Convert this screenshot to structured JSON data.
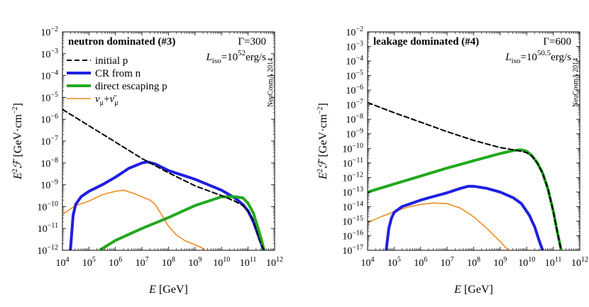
{
  "chart_data": [
    {
      "type": "line",
      "title": "neutron dominated (#3)",
      "param_gamma": "Γ=300",
      "lum_base": "L",
      "lum_sub": "iso",
      "lum_eq": "=10",
      "lum_exp": "52",
      "lum_unit": "erg/s",
      "watermark": "NeuCosmA 2014",
      "xlabel": "E [GeV]",
      "ylabel": "E²ℱ [GeV·cm⁻²]",
      "xlim": [
        4,
        12
      ],
      "ylim": [
        -12,
        -2
      ],
      "x_tick_exponents": [
        4,
        5,
        6,
        7,
        8,
        9,
        10,
        11,
        12
      ],
      "y_tick_exponents": [
        -12,
        -11,
        -10,
        -9,
        -8,
        -7,
        -6,
        -5,
        -4,
        -3,
        -2
      ],
      "series": [
        {
          "name": "initial p",
          "color": "#000000",
          "dash": true,
          "log_x": [
            4,
            5,
            6,
            7,
            8,
            9,
            10,
            10.5,
            10.8,
            11.0,
            11.15,
            11.3,
            11.45,
            11.6
          ],
          "log_y": [
            -5.55,
            -6.3,
            -7.05,
            -7.8,
            -8.45,
            -9.05,
            -9.5,
            -9.75,
            -9.95,
            -10.2,
            -10.5,
            -11.0,
            -11.6,
            -12.0
          ]
        },
        {
          "name": "CR from n",
          "color": "#1f1fe0",
          "dash": false,
          "log_x": [
            4.3,
            4.4,
            4.5,
            4.7,
            5.0,
            5.5,
            6.0,
            6.5,
            7.0,
            7.2,
            7.5,
            8.0,
            9.0,
            10.0,
            10.5,
            10.8,
            11.0,
            11.2,
            11.35,
            11.5,
            11.58
          ],
          "log_y": [
            -12.0,
            -10.4,
            -9.9,
            -9.55,
            -9.3,
            -9.0,
            -8.65,
            -8.25,
            -8.0,
            -7.95,
            -8.05,
            -8.35,
            -8.75,
            -9.25,
            -9.6,
            -9.9,
            -10.2,
            -10.7,
            -11.2,
            -11.7,
            -12.0
          ]
        },
        {
          "name": "direct escaping p",
          "color": "#22a81e",
          "dash": false,
          "log_x": [
            5.4,
            6,
            7,
            8,
            9,
            10,
            10.5,
            10.8,
            11.0,
            11.2,
            11.35,
            11.5,
            11.6
          ],
          "log_y": [
            -12.0,
            -11.55,
            -11.0,
            -10.5,
            -9.95,
            -9.55,
            -9.55,
            -9.6,
            -9.85,
            -10.3,
            -10.9,
            -11.5,
            -12.0
          ]
        },
        {
          "name": "ν_μ+ν̄_μ",
          "color": "#ef8c1f",
          "dash": false,
          "log_x": [
            4.0,
            4.5,
            5.0,
            5.5,
            6.0,
            6.3,
            6.7,
            7.0,
            7.3,
            7.5,
            7.7,
            8.0,
            8.3,
            8.6,
            8.9,
            9.2,
            9.4
          ],
          "log_y": [
            -10.35,
            -9.95,
            -9.75,
            -9.45,
            -9.3,
            -9.25,
            -9.4,
            -9.55,
            -9.7,
            -9.9,
            -10.3,
            -10.9,
            -11.3,
            -11.55,
            -11.7,
            -11.85,
            -12.0
          ]
        }
      ],
      "legend": {
        "placement": "top-left",
        "entries": [
          {
            "label": "initial p",
            "color": "#000000",
            "dash": true
          },
          {
            "label": "CR from n",
            "color": "#1f1fe0",
            "dash": false
          },
          {
            "label": "direct escaping p",
            "color": "#22a81e",
            "dash": false
          },
          {
            "label_main": "ν",
            "label_sub": "μ",
            "label_plus": "+",
            "label_main2": "ν̄",
            "label_sub2": "μ",
            "color": "#ef8c1f",
            "dash": false
          }
        ]
      }
    },
    {
      "type": "line",
      "title": "leakage dominated (#4)",
      "param_gamma": "Γ=600",
      "lum_base": "L",
      "lum_sub": "iso",
      "lum_eq": "=10",
      "lum_exp": "50.5",
      "lum_unit": "erg/s",
      "watermark": "NeuCosmA 2014",
      "xlabel": "E [GeV]",
      "ylabel": "E²ℱ [GeV·cm⁻²]",
      "xlim": [
        4,
        12
      ],
      "ylim": [
        -17,
        -2
      ],
      "x_tick_exponents": [
        4,
        5,
        6,
        7,
        8,
        9,
        10,
        11,
        12
      ],
      "y_tick_exponents": [
        -17,
        -16,
        -15,
        -14,
        -13,
        -12,
        -11,
        -10,
        -9,
        -8,
        -7,
        -6,
        -5,
        -4,
        -3,
        -2
      ],
      "series": [
        {
          "name": "initial p",
          "color": "#000000",
          "dash": true,
          "log_x": [
            4,
            5,
            6,
            7,
            8,
            9,
            9.5,
            9.8,
            10.0,
            10.2,
            10.4,
            10.6,
            10.8,
            11.0,
            11.15,
            11.3
          ],
          "log_y": [
            -6.85,
            -7.55,
            -8.2,
            -8.85,
            -9.45,
            -9.95,
            -10.1,
            -10.2,
            -10.3,
            -10.55,
            -11.0,
            -11.7,
            -12.8,
            -14.3,
            -15.7,
            -17.0
          ]
        },
        {
          "name": "CR from n",
          "color": "#1f1fe0",
          "dash": false,
          "log_x": [
            4.7,
            4.8,
            4.9,
            5.0,
            5.3,
            5.7,
            6.0,
            6.5,
            7.0,
            7.5,
            7.8,
            8.0,
            8.5,
            9.0,
            9.5,
            9.8,
            10.1,
            10.3,
            10.5,
            10.6
          ],
          "log_y": [
            -17.0,
            -15.5,
            -14.8,
            -14.4,
            -14.0,
            -13.75,
            -13.55,
            -13.3,
            -13.05,
            -12.75,
            -12.6,
            -12.6,
            -12.75,
            -13.0,
            -13.4,
            -13.8,
            -14.6,
            -15.4,
            -16.5,
            -17.0
          ]
        },
        {
          "name": "direct escaping p",
          "color": "#22a81e",
          "dash": false,
          "log_x": [
            4,
            5,
            6,
            7,
            8,
            9,
            9.5,
            9.8,
            10.0,
            10.2,
            10.4,
            10.6,
            10.8,
            11.0,
            11.15,
            11.3
          ],
          "log_y": [
            -13.0,
            -12.45,
            -11.9,
            -11.35,
            -10.85,
            -10.35,
            -10.15,
            -10.1,
            -10.2,
            -10.5,
            -11.0,
            -11.7,
            -12.8,
            -14.3,
            -15.7,
            -17.0
          ]
        },
        {
          "name": "ν_μ+ν̄_μ",
          "color": "#ef8c1f",
          "dash": false,
          "log_x": [
            4.0,
            4.5,
            5.0,
            5.5,
            6.0,
            6.5,
            7.0,
            7.5,
            8.0,
            8.5,
            9.0,
            9.3
          ],
          "log_y": [
            -15.1,
            -14.7,
            -14.35,
            -14.05,
            -13.85,
            -13.75,
            -13.8,
            -14.1,
            -14.7,
            -15.5,
            -16.4,
            -17.0
          ]
        }
      ]
    }
  ]
}
